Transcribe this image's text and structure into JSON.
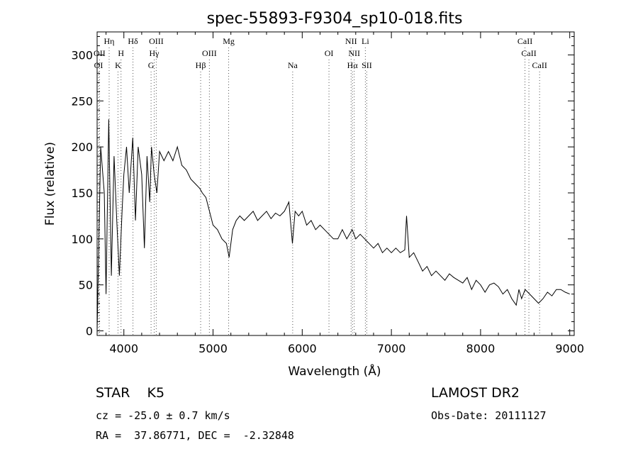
{
  "chart_data": {
    "type": "line",
    "title": "spec-55893-F9304_sp10-018.fits",
    "xlabel": "Wavelength (Å)",
    "ylabel": "Flux (relative)",
    "xlim": [
      3700,
      9050
    ],
    "ylim": [
      -5,
      325
    ],
    "x_ticks": [
      4000,
      5000,
      6000,
      7000,
      8000,
      9000
    ],
    "y_ticks": [
      0,
      50,
      100,
      150,
      200,
      250,
      300
    ],
    "grid": false,
    "series": [
      {
        "x": [
          3700,
          3740,
          3780,
          3800,
          3830,
          3860,
          3890,
          3920,
          3950,
          3980,
          4000,
          4030,
          4060,
          4100,
          4130,
          4160,
          4200,
          4230,
          4260,
          4290,
          4310,
          4340,
          4370,
          4400,
          4450,
          4500,
          4550,
          4600,
          4650,
          4700,
          4750,
          4800,
          4850,
          4880,
          4920,
          4960,
          5000,
          5050,
          5100,
          5150,
          5180,
          5220,
          5260,
          5300,
          5350,
          5400,
          5450,
          5500,
          5550,
          5600,
          5650,
          5700,
          5750,
          5800,
          5850,
          5890,
          5920,
          5960,
          6000,
          6050,
          6100,
          6150,
          6200,
          6250,
          6300,
          6350,
          6400,
          6450,
          6500,
          6560,
          6600,
          6650,
          6700,
          6750,
          6800,
          6850,
          6900,
          6950,
          7000,
          7050,
          7100,
          7150,
          7170,
          7200,
          7250,
          7300,
          7350,
          7400,
          7450,
          7500,
          7550,
          7600,
          7650,
          7700,
          7750,
          7800,
          7850,
          7900,
          7950,
          8000,
          8050,
          8100,
          8150,
          8200,
          8250,
          8300,
          8350,
          8400,
          8430,
          8460,
          8500,
          8550,
          8600,
          8650,
          8700,
          8750,
          8800,
          8850,
          8900,
          8950,
          9000
        ],
        "values": [
          0,
          200,
          150,
          40,
          230,
          60,
          190,
          120,
          60,
          130,
          170,
          200,
          150,
          210,
          120,
          200,
          170,
          90,
          190,
          140,
          200,
          170,
          150,
          195,
          185,
          195,
          185,
          200,
          180,
          175,
          165,
          160,
          155,
          150,
          145,
          130,
          115,
          110,
          100,
          95,
          80,
          110,
          120,
          125,
          120,
          125,
          130,
          120,
          125,
          130,
          122,
          128,
          125,
          130,
          140,
          95,
          130,
          125,
          130,
          115,
          120,
          110,
          115,
          110,
          105,
          100,
          100,
          110,
          100,
          110,
          100,
          105,
          100,
          95,
          90,
          95,
          85,
          90,
          85,
          90,
          85,
          88,
          125,
          80,
          85,
          75,
          65,
          70,
          60,
          65,
          60,
          55,
          62,
          58,
          55,
          52,
          58,
          45,
          55,
          50,
          42,
          50,
          52,
          48,
          40,
          45,
          35,
          28,
          45,
          35,
          45,
          40,
          35,
          30,
          35,
          42,
          38,
          45,
          45,
          42,
          40
        ]
      }
    ],
    "lines": [
      {
        "label": "OII",
        "x": 3727,
        "row": 2
      },
      {
        "label": "OI",
        "x": 3716,
        "row": 3
      },
      {
        "label": "Hη",
        "x": 3835,
        "row": 1
      },
      {
        "label": "H",
        "x": 3968,
        "row": 2
      },
      {
        "label": "K",
        "x": 3934,
        "row": 3
      },
      {
        "label": "Hδ",
        "x": 4102,
        "row": 1
      },
      {
        "label": "OIII",
        "x": 4363,
        "row": 1
      },
      {
        "label": "Hγ",
        "x": 4340,
        "row": 2
      },
      {
        "label": "G",
        "x": 4305,
        "row": 3
      },
      {
        "label": "Hβ",
        "x": 4861,
        "row": 3
      },
      {
        "label": "OIII",
        "x": 4959,
        "row": 2
      },
      {
        "label": "Mg",
        "x": 5175,
        "row": 1
      },
      {
        "label": "Na",
        "x": 5893,
        "row": 3
      },
      {
        "label": "OI",
        "x": 6300,
        "row": 2
      },
      {
        "label": "NII",
        "x": 6548,
        "row": 1
      },
      {
        "label": "NII",
        "x": 6583,
        "row": 2
      },
      {
        "label": "Hα",
        "x": 6563,
        "row": 3
      },
      {
        "label": "Li",
        "x": 6708,
        "row": 1
      },
      {
        "label": "SII",
        "x": 6724,
        "row": 3
      },
      {
        "label": "CaII",
        "x": 8498,
        "row": 1
      },
      {
        "label": "CaII",
        "x": 8542,
        "row": 2
      },
      {
        "label": "CaII",
        "x": 8662,
        "row": 3
      }
    ]
  },
  "info": {
    "class_line": "STAR    K5",
    "survey": "LAMOST DR2",
    "cz": "cz = -25.0 ± 0.7 km/s",
    "obs_date": "Obs-Date: 20111127",
    "radec": "RA =  37.86771, DEC =  -2.32848"
  }
}
